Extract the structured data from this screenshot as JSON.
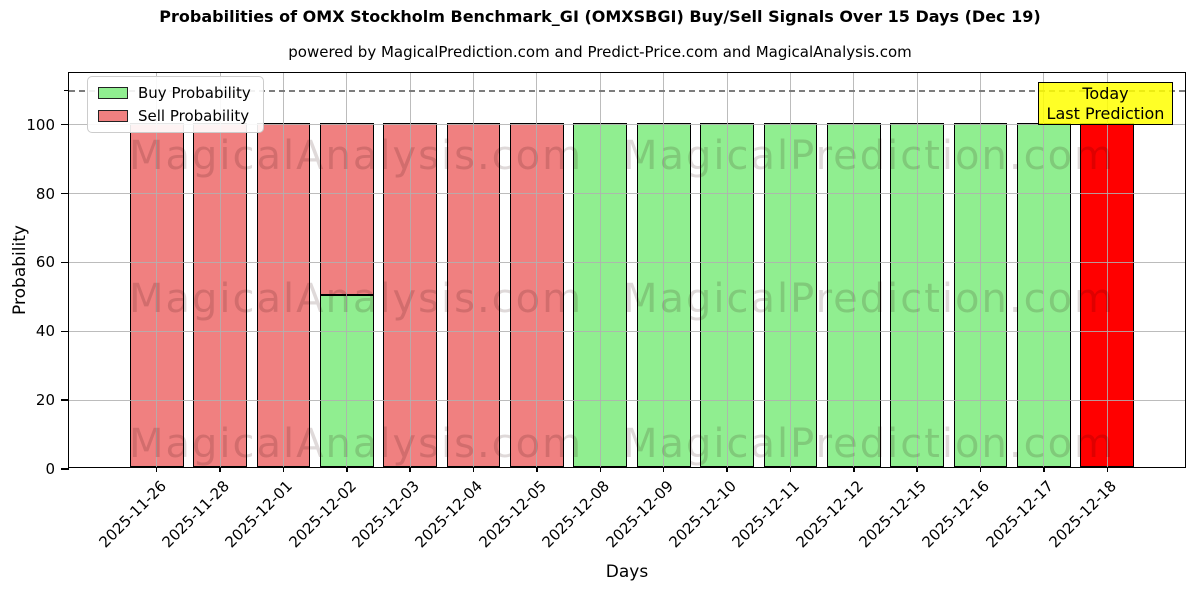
{
  "title": "Probabilities of OMX Stockholm Benchmark_GI (OMXSBGI) Buy/Sell Signals Over 15 Days (Dec 19)",
  "subtitle": "powered by MagicalPrediction.com and Predict-Price.com and MagicalAnalysis.com",
  "legend": {
    "items": [
      {
        "label": "Buy Probability",
        "color": "#90ee90"
      },
      {
        "label": "Sell Probability",
        "color": "#f08080"
      }
    ]
  },
  "annotation": {
    "line1": "Today",
    "line2": "Last Prediction",
    "bg_color": "#ffff00"
  },
  "axes": {
    "xlabel": "Days",
    "ylabel": "Probability",
    "yticks": [
      0,
      20,
      40,
      60,
      80,
      100
    ]
  },
  "watermarks": {
    "left": "MagicalAnalysis.com",
    "right": "MagicalPrediction.com"
  },
  "colors": {
    "buy": "#90ee90",
    "sell": "#f08080",
    "today_bar": "#ff0000",
    "bar_edge": "#000000",
    "grid": "#b0b0b0",
    "dashed_line": "#7d7d7d",
    "annotation_bg": "#ffff00"
  },
  "chart_data": {
    "type": "bar",
    "stacked": true,
    "title": "Probabilities of OMX Stockholm Benchmark_GI (OMXSBGI) Buy/Sell Signals Over 15 Days (Dec 19)",
    "xlabel": "Days",
    "ylabel": "Probability",
    "ylim": [
      0,
      115
    ],
    "dashed_line_y": 110,
    "grid": true,
    "legend_position": "upper left",
    "categories": [
      "2025-11-26",
      "2025-11-28",
      "2025-12-01",
      "2025-12-02",
      "2025-12-03",
      "2025-12-04",
      "2025-12-05",
      "2025-12-08",
      "2025-12-09",
      "2025-12-10",
      "2025-12-11",
      "2025-12-12",
      "2025-12-15",
      "2025-12-16",
      "2025-12-17",
      "2025-12-18"
    ],
    "series": [
      {
        "name": "Buy Probability",
        "color": "#90ee90",
        "values": [
          0,
          0,
          0,
          50,
          0,
          0,
          0,
          100,
          100,
          100,
          100,
          100,
          100,
          100,
          100,
          0
        ]
      },
      {
        "name": "Sell Probability",
        "color": "#f08080",
        "values": [
          100,
          100,
          100,
          50,
          100,
          100,
          100,
          0,
          0,
          0,
          0,
          0,
          0,
          0,
          0,
          0
        ]
      },
      {
        "name": "Today / Last Prediction",
        "color": "#ff0000",
        "values": [
          0,
          0,
          0,
          0,
          0,
          0,
          0,
          0,
          0,
          0,
          0,
          0,
          0,
          0,
          0,
          100
        ]
      }
    ]
  }
}
